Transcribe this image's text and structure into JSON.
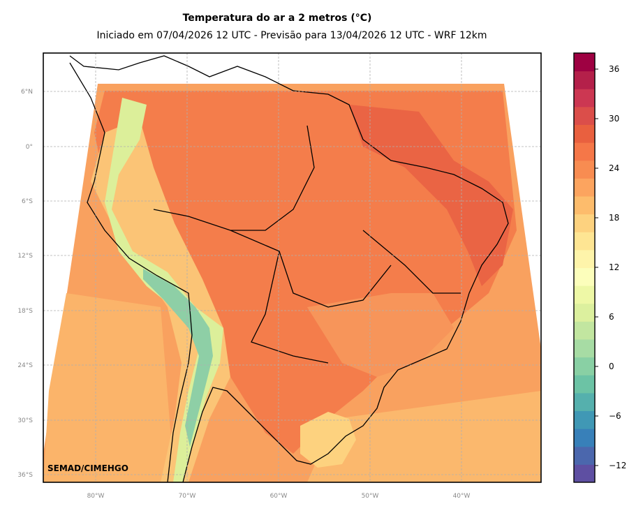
{
  "title": "Temperatura do ar a 2 metros (°C)",
  "subtitle": "Iniciado em 07/04/2026 12 UTC - Previsão para 13/04/2026 12 UTC - WRF 12km",
  "credit": "SEMAD/CIMEHGO",
  "lat_labels": [
    "6°N",
    "0°",
    "6°S",
    "12°S",
    "18°S",
    "24°S",
    "30°S",
    "36°S"
  ],
  "lon_labels": [
    "80°W",
    "70°W",
    "60°W",
    "50°W",
    "40°W"
  ],
  "colorbar_ticks": [
    "36",
    "30",
    "24",
    "18",
    "12",
    "6",
    "0",
    "−6",
    "−12"
  ],
  "colorbar_colors": [
    "#5e4fa2",
    "#4b67ad",
    "#3880b9",
    "#4098b5",
    "#55b0ad",
    "#6cc3a5",
    "#89d0a4",
    "#a7dca4",
    "#c2e6a0",
    "#dcf09e",
    "#eef8a6",
    "#fcfebb",
    "#fef4aa",
    "#fee593",
    "#fdd27f",
    "#fdbc6c",
    "#fca45f",
    "#f88c51",
    "#f57748",
    "#e9603f",
    "#db4e4a",
    "#cc3752",
    "#b4204a",
    "#9e0142"
  ],
  "map_colors": {
    "warm": "#f47f4c",
    "hot": "#ec6a46",
    "mild": "#f9a662",
    "cool": "#fdcf7d",
    "cold": "#dcef9a",
    "frigid": "#7fc4a6",
    "ocean": "#fab46a"
  }
}
